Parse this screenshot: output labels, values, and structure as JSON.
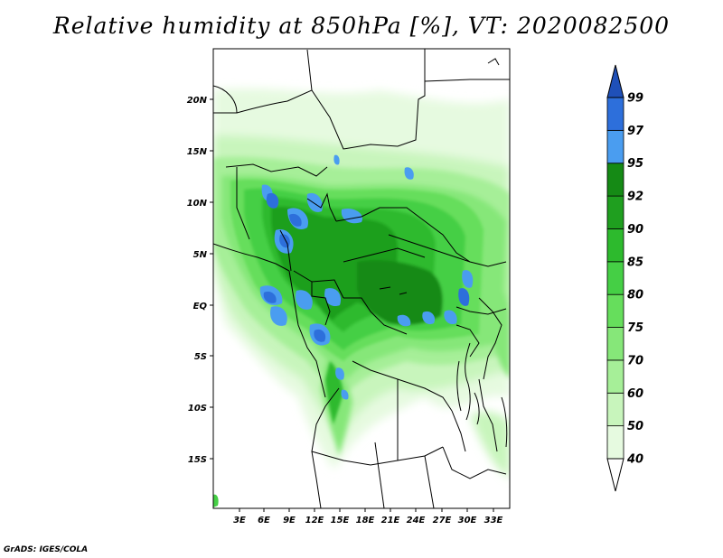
{
  "title": "Relative humidity at 850hPa [%], VT: 2020082500",
  "credit": "GrADS: IGES/COLA",
  "map": {
    "x_ticks": [
      "3E",
      "6E",
      "9E",
      "12E",
      "15E",
      "18E",
      "21E",
      "24E",
      "27E",
      "30E",
      "33E"
    ],
    "y_ticks": [
      "20N",
      "15N",
      "10N",
      "5N",
      "EQ",
      "5S",
      "10S",
      "15S"
    ]
  },
  "colorbar": {
    "labels": [
      "40",
      "50",
      "60",
      "70",
      "75",
      "80",
      "85",
      "90",
      "92",
      "95",
      "97",
      "99"
    ],
    "colors": [
      "#ffffff",
      "#e6fae0",
      "#c8f5bc",
      "#a6ef98",
      "#86e779",
      "#66de5c",
      "#45cf45",
      "#2dba2d",
      "#1f9f1f",
      "#158a15",
      "#4a9df0",
      "#2d6fdb",
      "#1f50b8"
    ]
  },
  "chart_data": {
    "type": "heatmap",
    "title": "Relative humidity at 850hPa [%], VT: 2020082500",
    "variable": "Relative humidity",
    "units": "%",
    "level": "850hPa",
    "valid_time": "2020082500",
    "x_ticks": [
      "3E",
      "6E",
      "9E",
      "12E",
      "15E",
      "18E",
      "21E",
      "24E",
      "27E",
      "30E",
      "33E"
    ],
    "y_ticks": [
      "20N",
      "15N",
      "10N",
      "5N",
      "EQ",
      "5S",
      "10S",
      "15S"
    ],
    "lon_range": [
      0.5,
      34.5
    ],
    "lat_range": [
      -20,
      25
    ],
    "contour_levels": [
      40,
      50,
      60,
      70,
      75,
      80,
      85,
      90,
      92,
      95,
      97,
      99
    ]
  }
}
